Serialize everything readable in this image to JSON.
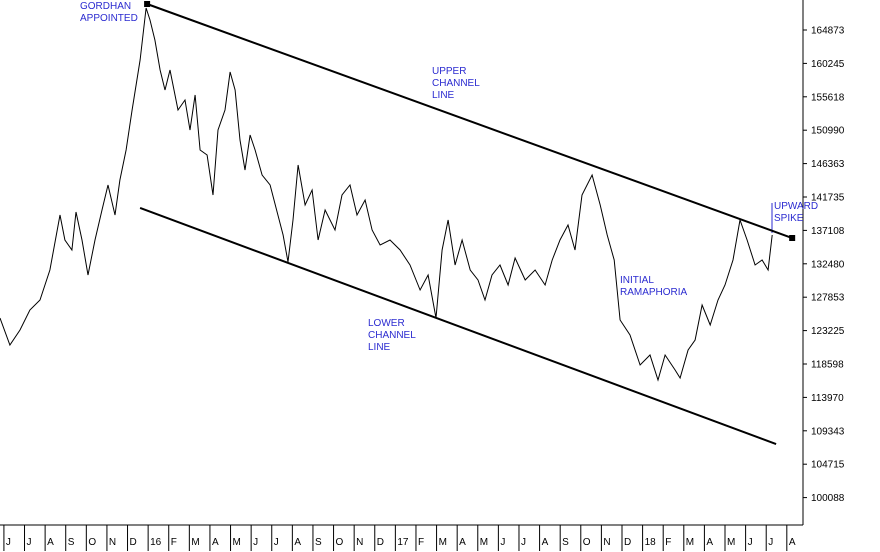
{
  "chart_data": {
    "type": "line",
    "x_axis_position": "bottom",
    "y_axis_position": "right",
    "xlim": [
      -0.19,
      38.64
    ],
    "ylim": [
      96291,
      169029
    ],
    "xticks": [
      {
        "value": 0,
        "label": "J"
      },
      {
        "value": 1,
        "label": "J"
      },
      {
        "value": 2,
        "label": "A"
      },
      {
        "value": 3,
        "label": "S"
      },
      {
        "value": 4,
        "label": "O"
      },
      {
        "value": 5,
        "label": "N"
      },
      {
        "value": 6,
        "label": "D"
      },
      {
        "value": 7,
        "label": "16"
      },
      {
        "value": 8,
        "label": "F"
      },
      {
        "value": 9,
        "label": "M"
      },
      {
        "value": 10,
        "label": "A"
      },
      {
        "value": 11,
        "label": "M"
      },
      {
        "value": 12,
        "label": "J"
      },
      {
        "value": 13,
        "label": "J"
      },
      {
        "value": 14,
        "label": "A"
      },
      {
        "value": 15,
        "label": "S"
      },
      {
        "value": 16,
        "label": "O"
      },
      {
        "value": 17,
        "label": "N"
      },
      {
        "value": 18,
        "label": "D"
      },
      {
        "value": 19,
        "label": "17"
      },
      {
        "value": 20,
        "label": "F"
      },
      {
        "value": 21,
        "label": "M"
      },
      {
        "value": 22,
        "label": "A"
      },
      {
        "value": 23,
        "label": "M"
      },
      {
        "value": 24,
        "label": "J"
      },
      {
        "value": 25,
        "label": "J"
      },
      {
        "value": 26,
        "label": "A"
      },
      {
        "value": 27,
        "label": "S"
      },
      {
        "value": 28,
        "label": "O"
      },
      {
        "value": 29,
        "label": "N"
      },
      {
        "value": 30,
        "label": "D"
      },
      {
        "value": 31,
        "label": "18"
      },
      {
        "value": 32,
        "label": "F"
      },
      {
        "value": 33,
        "label": "M"
      },
      {
        "value": 34,
        "label": "A"
      },
      {
        "value": 35,
        "label": "M"
      },
      {
        "value": 36,
        "label": "J"
      },
      {
        "value": 37,
        "label": "J"
      },
      {
        "value": 38,
        "label": "A"
      }
    ],
    "yticks": [
      164873,
      160245,
      155618,
      150990,
      146363,
      141735,
      137108,
      132480,
      127853,
      123225,
      118598,
      113970,
      109343,
      104715,
      100088
    ],
    "series": [
      {
        "color": "#000000",
        "x": [
          -0.19,
          0.29,
          0.78,
          1.26,
          1.75,
          2.23,
          2.72,
          2.96,
          3.3,
          3.5,
          3.79,
          4.08,
          4.42,
          4.76,
          5.05,
          5.39,
          5.63,
          5.93,
          6.22,
          6.61,
          6.9,
          7.09,
          7.33,
          7.58,
          7.82,
          8.06,
          8.45,
          8.79,
          9.03,
          9.28,
          9.52,
          9.86,
          10.15,
          10.39,
          10.73,
          10.98,
          11.22,
          11.46,
          11.7,
          11.95,
          12.19,
          12.53,
          12.92,
          13.3,
          13.55,
          13.79,
          14.03,
          14.28,
          14.62,
          14.96,
          15.25,
          15.59,
          16.07,
          16.41,
          16.8,
          17.14,
          17.53,
          17.87,
          18.26,
          18.74,
          19.23,
          19.71,
          20.2,
          20.59,
          20.97,
          21.27,
          21.56,
          21.9,
          22.24,
          22.63,
          23.01,
          23.35,
          23.69,
          24.08,
          24.47,
          24.81,
          25.3,
          25.78,
          26.27,
          26.61,
          26.99,
          27.38,
          27.72,
          28.06,
          28.55,
          28.94,
          29.28,
          29.62,
          29.91,
          30.39,
          30.88,
          31.36,
          31.75,
          32.09,
          32.58,
          32.82,
          33.21,
          33.55,
          33.89,
          34.28,
          34.66,
          35.0,
          35.39,
          35.73,
          36.07,
          36.46,
          36.8,
          37.09,
          37.29
        ],
        "values": [
          124970,
          121229,
          123307,
          126079,
          127464,
          131620,
          139241,
          135777,
          134392,
          139657,
          135777,
          130928,
          135777,
          139934,
          143397,
          139241,
          144090,
          148247,
          153788,
          160716,
          167921,
          166258,
          163487,
          159331,
          156559,
          159331,
          153788,
          155174,
          151017,
          155867,
          148247,
          147554,
          142010,
          151017,
          153788,
          159054,
          156559,
          149632,
          145476,
          150325,
          148247,
          144783,
          143397,
          139241,
          136469,
          132729,
          138548,
          146168,
          140627,
          142703,
          135777,
          139934,
          137162,
          142010,
          143397,
          139241,
          141319,
          137162,
          135085,
          135777,
          134392,
          132315,
          128849,
          130928,
          124970,
          134392,
          138548,
          132315,
          135777,
          131620,
          130235,
          127464,
          130928,
          132315,
          129542,
          133284,
          130235,
          131620,
          129542,
          133006,
          135777,
          137855,
          134392,
          142010,
          144783,
          140627,
          136469,
          133006,
          124693,
          122615,
          118459,
          119844,
          116380,
          119844,
          117766,
          116657,
          120536,
          121922,
          126771,
          124000,
          127464,
          129542,
          133006,
          138548,
          135777,
          132315,
          133006,
          131620,
          136469
        ]
      }
    ],
    "channel_lines": [
      {
        "x": [
          6.95,
          38.26
        ],
        "y": [
          168475,
          136054
        ]
      },
      {
        "x": [
          6.61,
          37.48
        ],
        "y": [
          140211,
          107511
        ]
      }
    ],
    "annotations": [
      [
        "GORDHAN",
        "APPOINTED"
      ],
      [
        "UPPER",
        "CHANNEL",
        "LINE"
      ],
      [
        "LOWER",
        "CHANNEL",
        "LINE"
      ],
      [
        "INITIAL",
        "RAMAPHORIA"
      ],
      [
        "UPWARD",
        "SPIKE"
      ]
    ]
  }
}
